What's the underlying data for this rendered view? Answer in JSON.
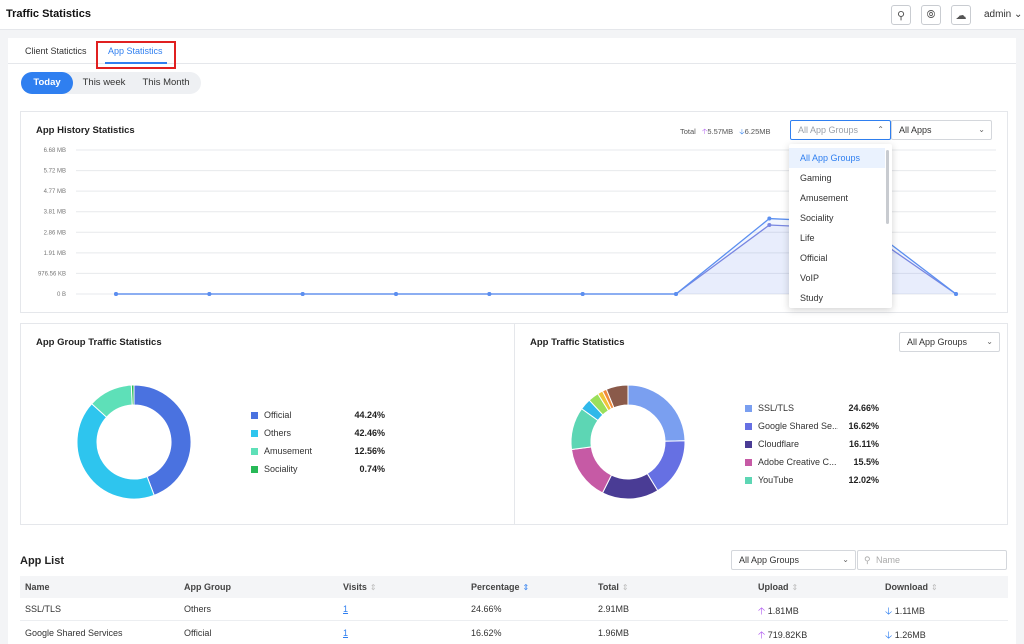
{
  "header": {
    "title": "Traffic Statistics",
    "user": "admin"
  },
  "tabs": [
    {
      "label": "Client Statictics",
      "active": false
    },
    {
      "label": "App Statistics",
      "active": true
    }
  ],
  "period": [
    {
      "label": "Today",
      "active": true
    },
    {
      "label": "This week",
      "active": false
    },
    {
      "label": "This Month",
      "active": false
    }
  ],
  "history": {
    "title": "App History Statistics",
    "total_label": "Total",
    "upload_total": "5.57MB",
    "download_total": "6.25MB",
    "group_select_placeholder": "All App Groups",
    "apps_select": "All Apps",
    "dropdown_options": [
      "All App Groups",
      "Gaming",
      "Amusement",
      "Sociality",
      "Life",
      "Official",
      "VoIP",
      "Study"
    ],
    "dropdown_selected": "All App Groups"
  },
  "chart_data": [
    {
      "type": "line",
      "title": "App History Statistics",
      "y_tick_labels": [
        "6.68 MB",
        "5.72 MB",
        "4.77 MB",
        "3.81 MB",
        "2.86 MB",
        "1.91 MB",
        "976.56 KB",
        "0 B"
      ],
      "ylim_mb": [
        0,
        6.68
      ],
      "grid": true,
      "series": [
        {
          "name": "Upload",
          "color": "#7b86e0",
          "values_mb": [
            0,
            0,
            0,
            0,
            0,
            0,
            0,
            3.2,
            3.0,
            0
          ]
        },
        {
          "name": "Download",
          "color": "#5b8ff0",
          "values_mb": [
            0,
            0,
            0,
            0,
            0,
            0,
            0,
            3.5,
            3.3,
            0
          ]
        }
      ]
    },
    {
      "type": "pie",
      "title": "App Group Traffic Statistics",
      "slices": [
        {
          "label": "Official",
          "value": 44.24,
          "display": "44.24%",
          "color": "#4a72e0"
        },
        {
          "label": "Others",
          "value": 42.46,
          "display": "42.46%",
          "color": "#2ec5ee"
        },
        {
          "label": "Amusement",
          "value": 12.56,
          "display": "12.56%",
          "color": "#5ee0b8"
        },
        {
          "label": "Sociality",
          "value": 0.74,
          "display": "0.74%",
          "color": "#27b957"
        }
      ]
    },
    {
      "type": "pie",
      "title": "App Traffic Statistics",
      "group_select": "All App Groups",
      "slices": [
        {
          "label": "SSL/TLS",
          "value": 24.66,
          "display": "24.66%",
          "color": "#7a9ff0"
        },
        {
          "label": "Google Shared Se...",
          "value": 16.62,
          "display": "16.62%",
          "color": "#6670e3"
        },
        {
          "label": "Cloudflare",
          "value": 16.11,
          "display": "16.11%",
          "color": "#4a3c95"
        },
        {
          "label": "Adobe Creative C...",
          "value": 15.5,
          "display": "15.5%",
          "color": "#c65aa5"
        },
        {
          "label": "YouTube",
          "value": 12.02,
          "display": "12.02%",
          "color": "#5dd6b4"
        },
        {
          "label": "",
          "value": 3.2,
          "display": "",
          "color": "#2fb8ea"
        },
        {
          "label": "",
          "value": 3.0,
          "display": "",
          "color": "#9adf5a"
        },
        {
          "label": "",
          "value": 1.5,
          "display": "",
          "color": "#f0c43a"
        },
        {
          "label": "",
          "value": 1.2,
          "display": "",
          "color": "#f08a3a"
        },
        {
          "label": "",
          "value": 6.19,
          "display": "",
          "color": "#8a5a4a"
        }
      ]
    }
  ],
  "app_list": {
    "title": "App List",
    "group_select": "All App Groups",
    "search_placeholder": "Name",
    "columns": [
      "Name",
      "App Group",
      "Visits",
      "Percentage",
      "Total",
      "Upload",
      "Download"
    ],
    "rows": [
      {
        "name": "SSL/TLS",
        "group": "Others",
        "visits": "1",
        "percentage": "24.66%",
        "total": "2.91MB",
        "upload": "1.81MB",
        "download": "1.11MB"
      },
      {
        "name": "Google Shared Services",
        "group": "Official",
        "visits": "1",
        "percentage": "16.62%",
        "total": "1.96MB",
        "upload": "719.82KB",
        "download": "1.26MB"
      }
    ]
  },
  "colors": {
    "accent": "#2f7ff0",
    "upload_arrow": "#b05cf0",
    "highlight": "#e02020"
  }
}
